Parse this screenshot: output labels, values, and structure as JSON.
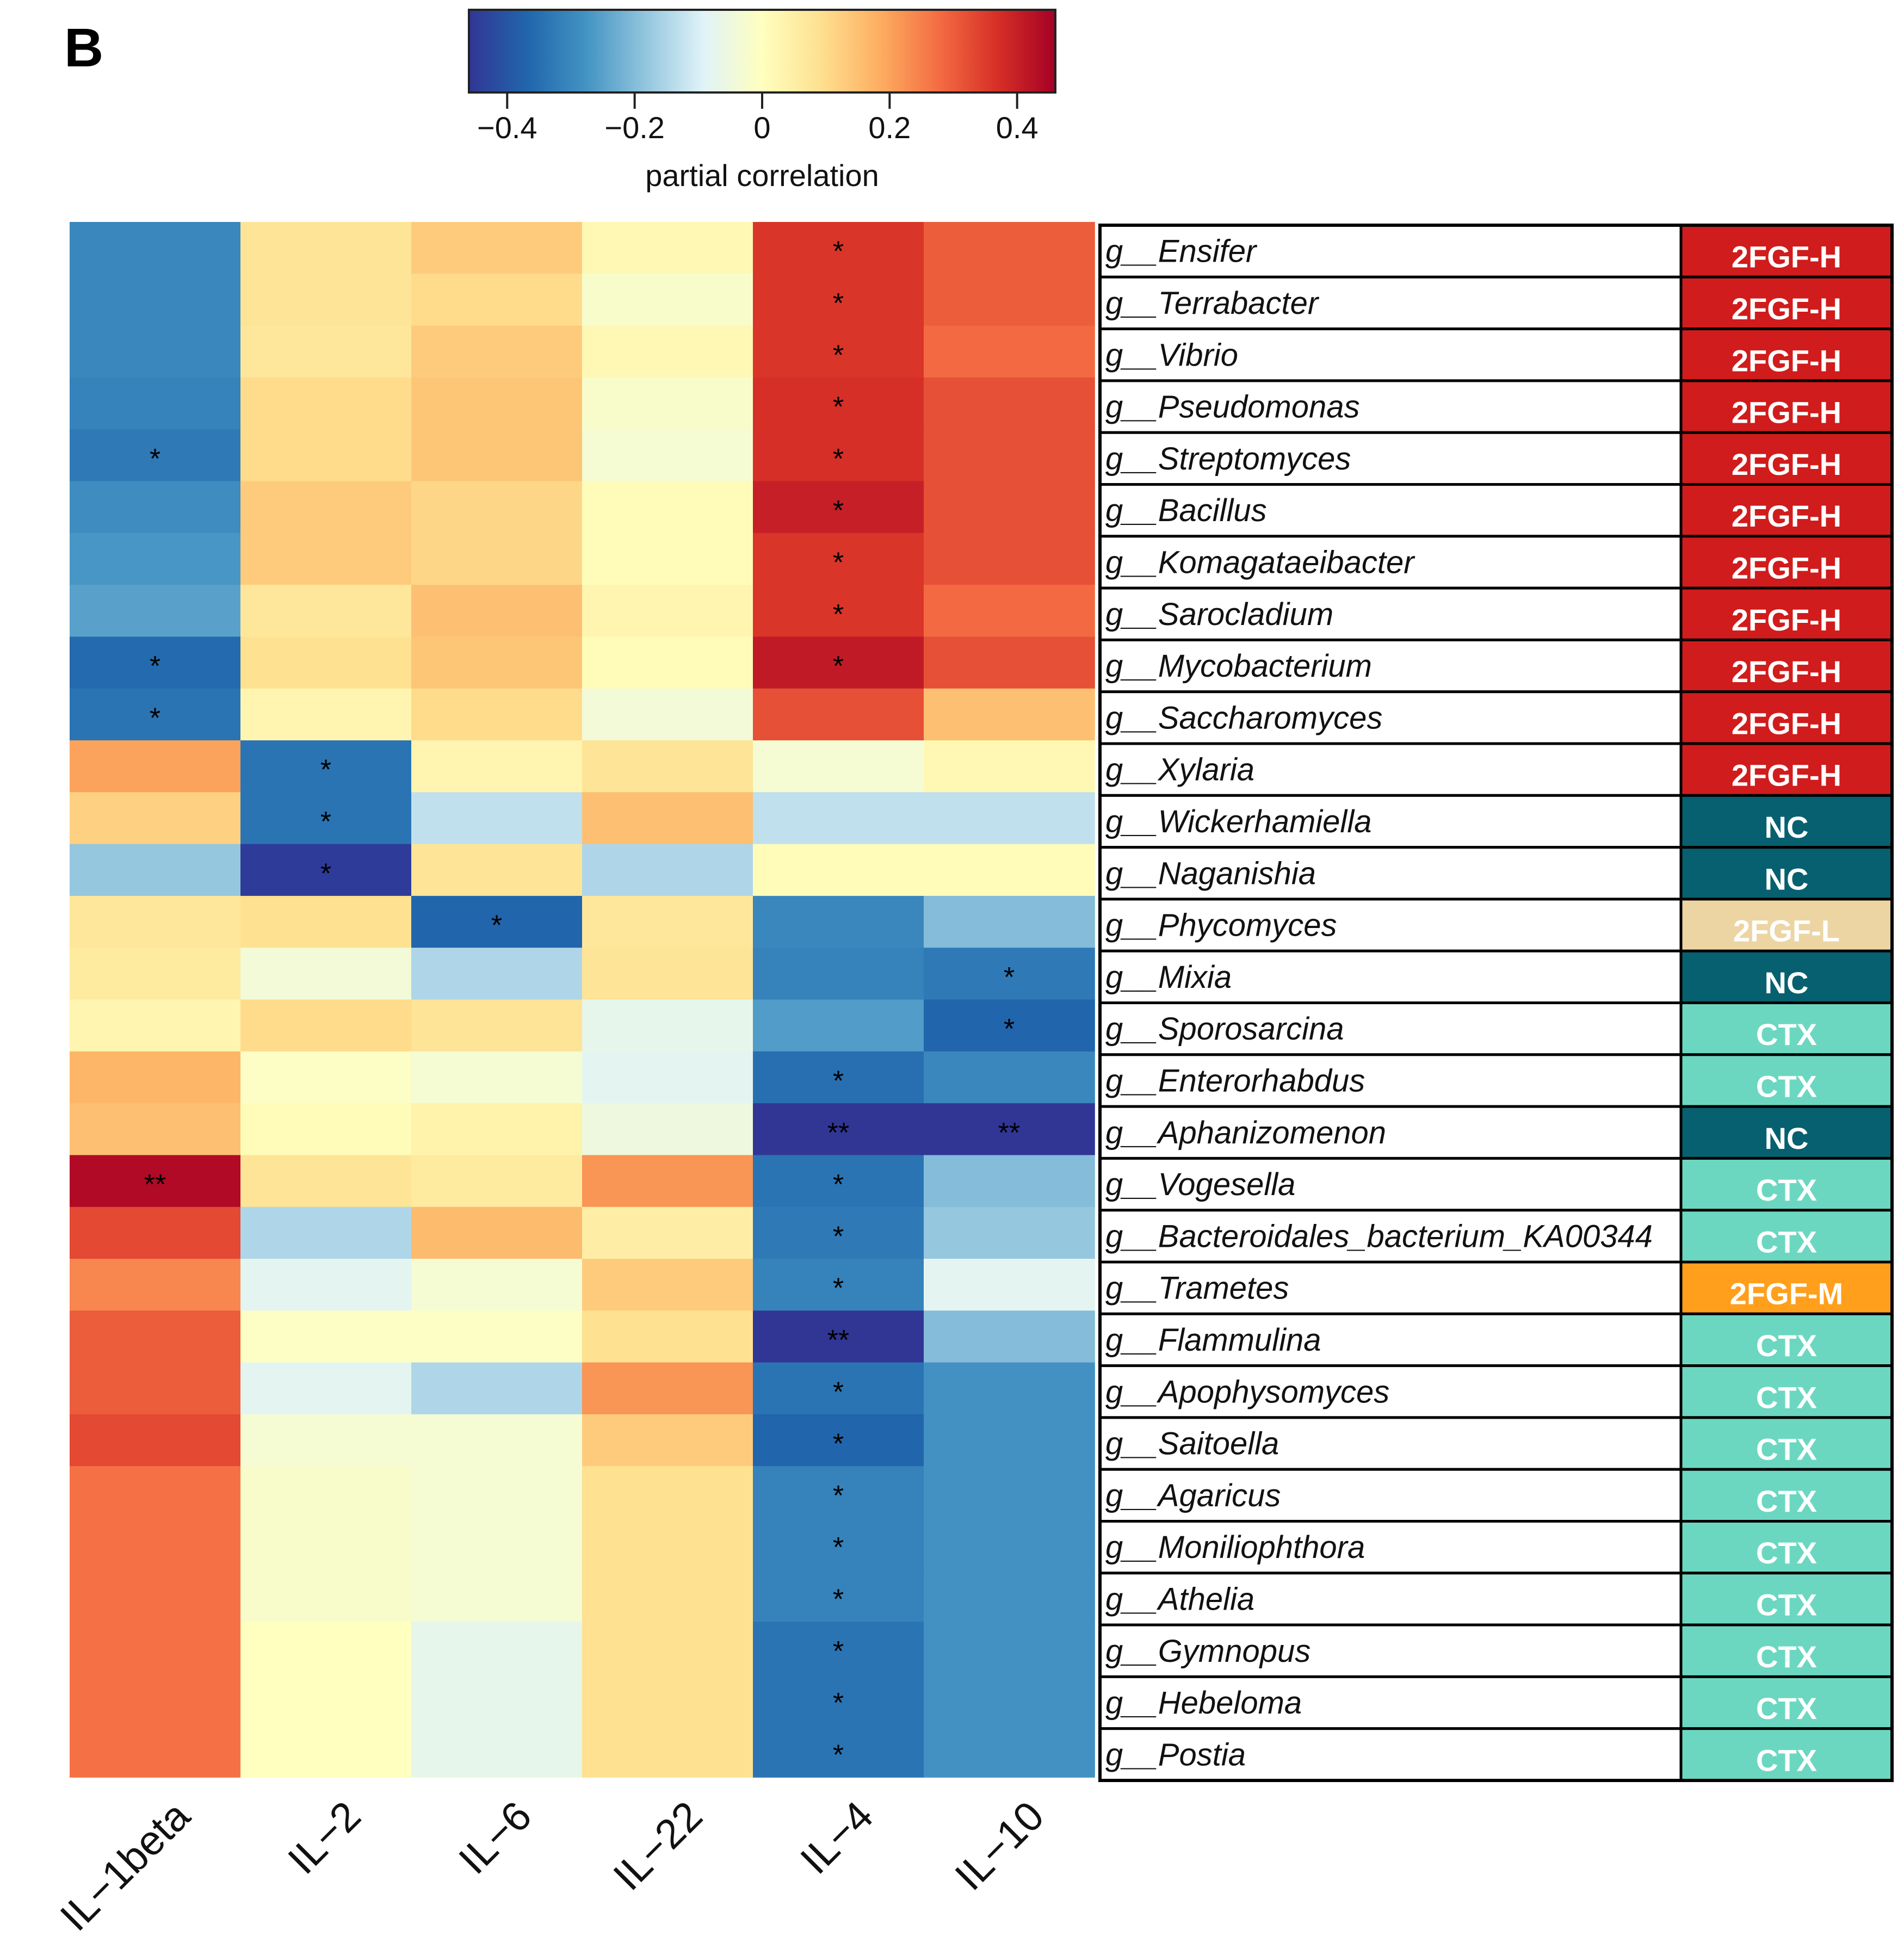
{
  "panel_label": "B",
  "chart_data": {
    "type": "heatmap",
    "title": "",
    "colorbar": {
      "label": "partial correlation",
      "range": [
        -0.46,
        0.46
      ],
      "ticks": [
        -0.4,
        -0.2,
        0,
        0.2,
        0.4
      ],
      "tick_labels": [
        "−0.4",
        "−0.2",
        "0",
        "0.2",
        "0.4"
      ],
      "colormap": [
        "#313695",
        "#2166ac",
        "#4393c3",
        "#92c5de",
        "#e0f3f8",
        "#ffffbf",
        "#fee090",
        "#fdae61",
        "#f46d43",
        "#d73027",
        "#a50026"
      ]
    },
    "columns": [
      "IL−1beta",
      "IL−2",
      "IL−6",
      "IL−22",
      "IL−4",
      "IL−10"
    ],
    "rows": [
      {
        "genus": "g__Ensifer",
        "group": "2FGF-H",
        "values": [
          -0.3,
          0.08,
          0.13,
          0.02,
          0.36,
          0.3
        ],
        "sig": [
          "",
          "",
          "",
          "",
          "*",
          ""
        ]
      },
      {
        "genus": "g__Terrabacter",
        "group": "2FGF-H",
        "values": [
          -0.3,
          0.08,
          0.1,
          -0.02,
          0.36,
          0.3
        ],
        "sig": [
          "",
          "",
          "",
          "",
          "*",
          ""
        ]
      },
      {
        "genus": "g__Vibrio",
        "group": "2FGF-H",
        "values": [
          -0.3,
          0.07,
          0.13,
          0.02,
          0.36,
          0.28
        ],
        "sig": [
          "",
          "",
          "",
          "",
          "*",
          ""
        ]
      },
      {
        "genus": "g__Pseudomonas",
        "group": "2FGF-H",
        "values": [
          -0.31,
          0.1,
          0.14,
          -0.02,
          0.37,
          0.32
        ],
        "sig": [
          "",
          "",
          "",
          "",
          "*",
          ""
        ]
      },
      {
        "genus": "g__Streptomyces",
        "group": "2FGF-H",
        "values": [
          -0.33,
          0.1,
          0.14,
          -0.03,
          0.37,
          0.32
        ],
        "sig": [
          "*",
          "",
          "",
          "",
          "*",
          ""
        ]
      },
      {
        "genus": "g__Bacillus",
        "group": "2FGF-H",
        "values": [
          -0.29,
          0.13,
          0.11,
          0.01,
          0.4,
          0.32
        ],
        "sig": [
          "",
          "",
          "",
          "",
          "*",
          ""
        ]
      },
      {
        "genus": "g__Komagataeibacter",
        "group": "2FGF-H",
        "values": [
          -0.27,
          0.13,
          0.11,
          0.01,
          0.36,
          0.32
        ],
        "sig": [
          "",
          "",
          "",
          "",
          "*",
          ""
        ]
      },
      {
        "genus": "g__Sarocladium",
        "group": "2FGF-H",
        "values": [
          -0.25,
          0.07,
          0.15,
          0.03,
          0.36,
          0.28
        ],
        "sig": [
          "",
          "",
          "",
          "",
          "*",
          ""
        ]
      },
      {
        "genus": "g__Mycobacterium",
        "group": "2FGF-H",
        "values": [
          -0.36,
          0.09,
          0.14,
          0.01,
          0.41,
          0.32
        ],
        "sig": [
          "*",
          "",
          "",
          "",
          "*",
          ""
        ]
      },
      {
        "genus": "g__Saccharomyces",
        "group": "2FGF-H",
        "values": [
          -0.34,
          0.03,
          0.1,
          -0.04,
          0.32,
          0.15
        ],
        "sig": [
          "*",
          "",
          "",
          "",
          "",
          ""
        ]
      },
      {
        "genus": "g__Xylaria",
        "group": "2FGF-H",
        "values": [
          0.2,
          -0.34,
          0.03,
          0.08,
          -0.03,
          0.02
        ],
        "sig": [
          "",
          "*",
          "",
          "",
          "",
          ""
        ]
      },
      {
        "genus": "g__Wickerhamiella",
        "group": "NC",
        "values": [
          0.12,
          -0.34,
          -0.13,
          0.15,
          -0.13,
          -0.13
        ],
        "sig": [
          "",
          "*",
          "",
          "",
          "",
          ""
        ]
      },
      {
        "genus": "g__Naganishia",
        "group": "NC",
        "values": [
          -0.18,
          -0.45,
          0.08,
          -0.15,
          0.01,
          0.01
        ],
        "sig": [
          "",
          "*",
          "",
          "",
          "",
          ""
        ]
      },
      {
        "genus": "g__Phycomyces",
        "group": "2FGF-L",
        "values": [
          0.07,
          0.09,
          -0.37,
          0.07,
          -0.3,
          -0.2
        ],
        "sig": [
          "",
          "",
          "*",
          "",
          "",
          ""
        ]
      },
      {
        "genus": "g__Mixia",
        "group": "NC",
        "values": [
          0.06,
          -0.04,
          -0.15,
          0.08,
          -0.31,
          -0.33
        ],
        "sig": [
          "",
          "",
          "",
          "",
          "",
          "*"
        ]
      },
      {
        "genus": "g__Sporosarcina",
        "group": "CTX",
        "values": [
          0.03,
          0.1,
          0.08,
          -0.07,
          -0.26,
          -0.37
        ],
        "sig": [
          "",
          "",
          "",
          "",
          "",
          "*"
        ]
      },
      {
        "genus": "g__Enterorhabdus",
        "group": "CTX",
        "values": [
          0.17,
          -0.01,
          -0.03,
          -0.08,
          -0.35,
          -0.3
        ],
        "sig": [
          "",
          "",
          "",
          "",
          "*",
          ""
        ]
      },
      {
        "genus": "g__Aphanizomenon",
        "group": "NC",
        "values": [
          0.15,
          0.01,
          0.04,
          -0.05,
          -0.46,
          -0.46
        ],
        "sig": [
          "",
          "",
          "",
          "",
          "**",
          "**"
        ]
      },
      {
        "genus": "g__Vogesella",
        "group": "CTX",
        "values": [
          0.44,
          0.08,
          0.06,
          0.22,
          -0.34,
          -0.2
        ],
        "sig": [
          "**",
          "",
          "",
          "",
          "*",
          ""
        ]
      },
      {
        "genus": "g__Bacteroidales_bacterium_KA00344",
        "group": "CTX",
        "values": [
          0.33,
          -0.15,
          0.16,
          0.05,
          -0.33,
          -0.18
        ],
        "sig": [
          "",
          "",
          "",
          "",
          "*",
          ""
        ]
      },
      {
        "genus": "g__Trametes",
        "group": "2FGF-M",
        "values": [
          0.24,
          -0.08,
          -0.03,
          0.13,
          -0.31,
          -0.08
        ],
        "sig": [
          "",
          "",
          "",
          "",
          "*",
          ""
        ]
      },
      {
        "genus": "g__Flammulina",
        "group": "CTX",
        "values": [
          0.3,
          -0.01,
          -0.01,
          0.09,
          -0.46,
          -0.2
        ],
        "sig": [
          "",
          "",
          "",
          "",
          "**",
          ""
        ]
      },
      {
        "genus": "g__Apophysomyces",
        "group": "CTX",
        "values": [
          0.3,
          -0.08,
          -0.15,
          0.22,
          -0.34,
          -0.28
        ],
        "sig": [
          "",
          "",
          "",
          "",
          "*",
          ""
        ]
      },
      {
        "genus": "g__Saitoella",
        "group": "CTX",
        "values": [
          0.33,
          -0.03,
          -0.03,
          0.13,
          -0.37,
          -0.28
        ],
        "sig": [
          "",
          "",
          "",
          "",
          "*",
          ""
        ]
      },
      {
        "genus": "g__Agaricus",
        "group": "CTX",
        "values": [
          0.27,
          -0.02,
          -0.03,
          0.09,
          -0.31,
          -0.28
        ],
        "sig": [
          "",
          "",
          "",
          "",
          "*",
          ""
        ]
      },
      {
        "genus": "g__Moniliophthora",
        "group": "CTX",
        "values": [
          0.27,
          -0.02,
          -0.03,
          0.09,
          -0.31,
          -0.28
        ],
        "sig": [
          "",
          "",
          "",
          "",
          "*",
          ""
        ]
      },
      {
        "genus": "g__Athelia",
        "group": "CTX",
        "values": [
          0.27,
          -0.02,
          -0.03,
          0.09,
          -0.31,
          -0.28
        ],
        "sig": [
          "",
          "",
          "",
          "",
          "*",
          ""
        ]
      },
      {
        "genus": "g__Gymnopus",
        "group": "CTX",
        "values": [
          0.27,
          0.0,
          -0.07,
          0.09,
          -0.34,
          -0.28
        ],
        "sig": [
          "",
          "",
          "",
          "",
          "*",
          ""
        ]
      },
      {
        "genus": "g__Hebeloma",
        "group": "CTX",
        "values": [
          0.27,
          0.0,
          -0.07,
          0.09,
          -0.34,
          -0.28
        ],
        "sig": [
          "",
          "",
          "",
          "",
          "*",
          ""
        ]
      },
      {
        "genus": "g__Postia",
        "group": "CTX",
        "values": [
          0.27,
          0.0,
          -0.07,
          0.09,
          -0.34,
          -0.28
        ],
        "sig": [
          "",
          "",
          "",
          "",
          "*",
          ""
        ]
      }
    ],
    "group_colors": {
      "2FGF-H": "#d01c1c",
      "2FGF-M": "#ff9f1c",
      "2FGF-L": "#ecd5a3",
      "NC": "#07606f",
      "CTX": "#6cd7c1"
    }
  }
}
